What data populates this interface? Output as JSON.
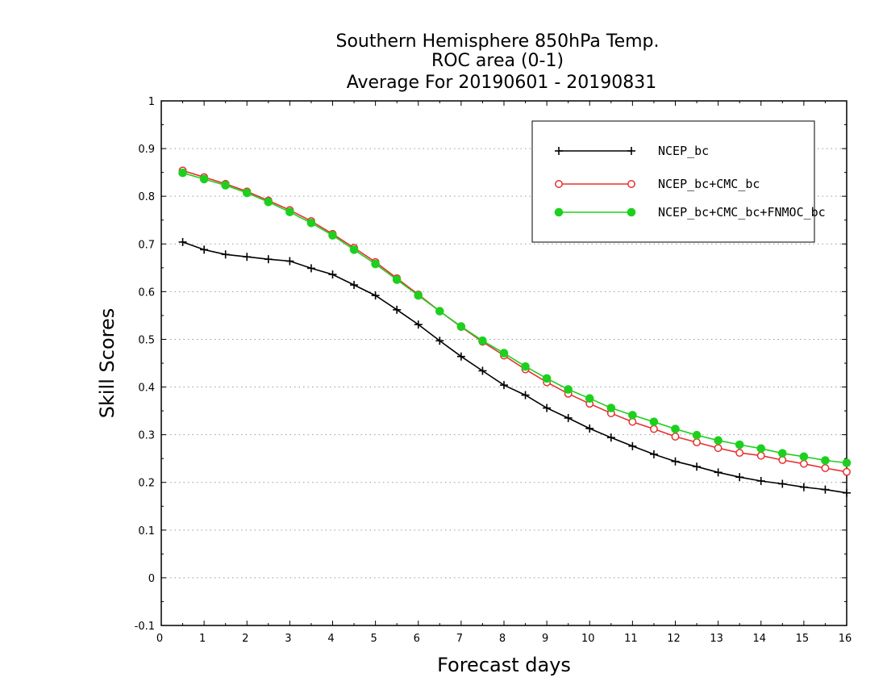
{
  "chart_data": {
    "type": "line",
    "title": [
      "Southern Hemisphere 850hPa Temp.",
      "ROC area (0-1)",
      "Average For 20190601 - 20190831"
    ],
    "xlabel": "Forecast days",
    "ylabel": "Skill Scores",
    "xlim": [
      0,
      16
    ],
    "ylim": [
      -0.1,
      1
    ],
    "xticks": [
      "0",
      "1",
      "2",
      "3",
      "4",
      "5",
      "6",
      "7",
      "8",
      "9",
      "10",
      "11",
      "12",
      "13",
      "14",
      "15",
      "16"
    ],
    "yticks": [
      "-0.1",
      "0",
      "0.1",
      "0.2",
      "0.3",
      "0.4",
      "0.5",
      "0.6",
      "0.7",
      "0.8",
      "0.9",
      "1"
    ],
    "grid": true,
    "legend_position": "top-right",
    "x": [
      0.5,
      1,
      1.5,
      2,
      2.5,
      3,
      3.5,
      4,
      4.5,
      5,
      5.5,
      6,
      6.5,
      7,
      7.5,
      8,
      8.5,
      9,
      9.5,
      10,
      10.5,
      11,
      11.5,
      12,
      12.5,
      13,
      13.5,
      14,
      14.5,
      15,
      15.5,
      16
    ],
    "series": [
      {
        "name": "NCEP_bc",
        "color": "#000000",
        "marker": "plus",
        "values": [
          0.704,
          0.688,
          0.678,
          0.673,
          0.668,
          0.664,
          0.649,
          0.636,
          0.614,
          0.592,
          0.562,
          0.531,
          0.497,
          0.464,
          0.434,
          0.404,
          0.383,
          0.356,
          0.335,
          0.313,
          0.294,
          0.276,
          0.259,
          0.244,
          0.233,
          0.221,
          0.211,
          0.203,
          0.197,
          0.19,
          0.185,
          0.178
        ]
      },
      {
        "name": "NCEP_bc+CMC_bc",
        "color": "#e83030",
        "marker": "open-circle",
        "values": [
          0.854,
          0.84,
          0.826,
          0.81,
          0.791,
          0.771,
          0.748,
          0.721,
          0.692,
          0.662,
          0.628,
          0.594,
          0.559,
          0.526,
          0.495,
          0.466,
          0.437,
          0.41,
          0.386,
          0.365,
          0.345,
          0.327,
          0.312,
          0.296,
          0.284,
          0.272,
          0.262,
          0.256,
          0.247,
          0.239,
          0.23,
          0.222
        ]
      },
      {
        "name": "NCEP_bc+CMC_bc+FNMOC_bc",
        "color": "#1ed01e",
        "marker": "filled-circle",
        "values": [
          0.849,
          0.836,
          0.823,
          0.807,
          0.788,
          0.767,
          0.744,
          0.718,
          0.688,
          0.658,
          0.625,
          0.592,
          0.559,
          0.527,
          0.497,
          0.471,
          0.443,
          0.418,
          0.395,
          0.376,
          0.356,
          0.341,
          0.327,
          0.312,
          0.299,
          0.288,
          0.279,
          0.271,
          0.261,
          0.254,
          0.246,
          0.241
        ]
      }
    ]
  }
}
